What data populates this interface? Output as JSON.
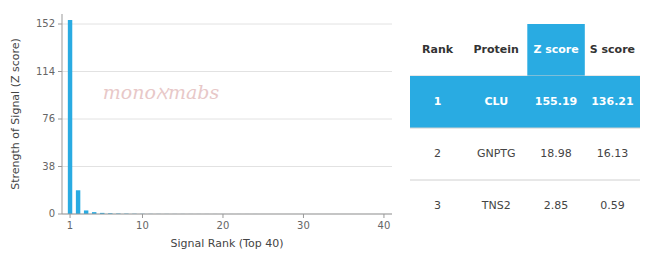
{
  "chart_data": {
    "type": "bar",
    "xlabel": "Signal Rank (Top 40)",
    "ylabel": "Strength of Signal (Z score)",
    "x": [
      1,
      2,
      3,
      4,
      5,
      6,
      7,
      8,
      9,
      10,
      11,
      12,
      13,
      14,
      15,
      16,
      17,
      18,
      19,
      20,
      21,
      22,
      23,
      24,
      25,
      26,
      27,
      28,
      29,
      30,
      31,
      32,
      33,
      34,
      35,
      36,
      37,
      38,
      39,
      40
    ],
    "values": [
      155.19,
      18.98,
      2.85,
      1.5,
      0.9,
      0.6,
      0.4,
      0.3,
      0.2,
      0.15,
      0.1,
      0.08,
      0.07,
      0.06,
      0.05,
      0.04,
      0.04,
      0.03,
      0.03,
      0.03,
      0.02,
      0.02,
      0.02,
      0.02,
      0.01,
      0.01,
      0.01,
      0.01,
      0.01,
      0.01,
      0.01,
      0.01,
      0.01,
      0.01,
      0.01,
      0.01,
      0.01,
      0.01,
      0.01,
      0.01
    ],
    "color": "#29ABE2",
    "xlim": [
      0,
      41
    ],
    "ylim": [
      0,
      160
    ],
    "xticks": [
      1,
      10,
      20,
      30,
      40
    ],
    "yticks": [
      0,
      38,
      76,
      114,
      152
    ],
    "grid": true,
    "annotations": [
      "monoℵmabs"
    ],
    "table": {
      "headers": [
        "Rank",
        "Protein",
        "Z score",
        "S score"
      ],
      "rows": [
        [
          "1",
          "CLU",
          "155.19",
          "136.21"
        ],
        [
          "2",
          "GNPTG",
          "18.98",
          "16.13"
        ],
        [
          "3",
          "TNS2",
          "2.85",
          "0.59"
        ]
      ]
    }
  }
}
